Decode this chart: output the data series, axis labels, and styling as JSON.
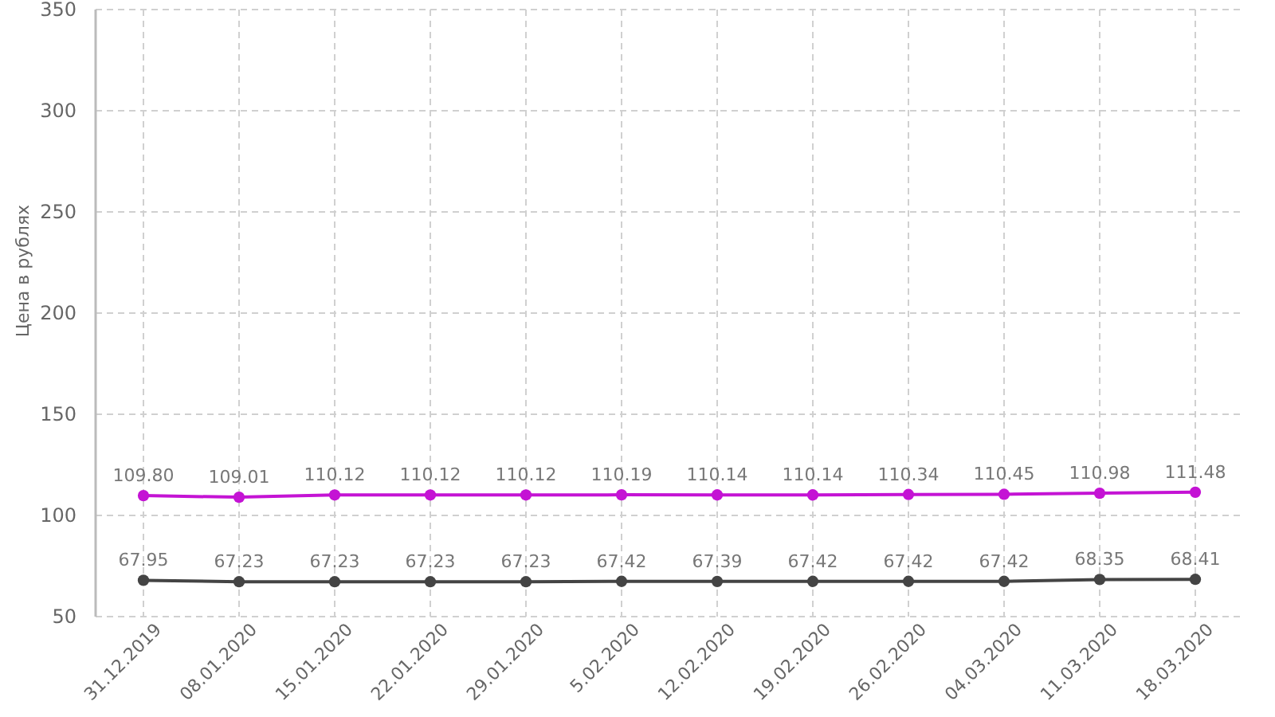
{
  "chart_data": {
    "type": "line",
    "ylabel": "Цена в рублях",
    "categories": [
      "31.12.2019",
      "08.01.2020",
      "15.01.2020",
      "22.01.2020",
      "29.01.2020",
      "5.02.2020",
      "12.02.2020",
      "19.02.2020",
      "26.02.2020",
      "04.03.2020",
      "11.03.2020",
      "18.03.2020"
    ],
    "series": [
      {
        "color": "#c413d4",
        "values": [
          109.8,
          109.01,
          110.12,
          110.12,
          110.12,
          110.19,
          110.14,
          110.14,
          110.34,
          110.45,
          110.98,
          111.48
        ],
        "value_labels": [
          "109.80",
          "109.01",
          "110.12",
          "110.12",
          "110.12",
          "110.19",
          "110.14",
          "110.14",
          "110.34",
          "110.45",
          "110.98",
          "111.48"
        ]
      },
      {
        "color": "#444444",
        "values": [
          67.95,
          67.23,
          67.23,
          67.23,
          67.23,
          67.42,
          67.39,
          67.42,
          67.42,
          67.42,
          68.35,
          68.41
        ],
        "value_labels": [
          "67.95",
          "67.23",
          "67.23",
          "67.23",
          "67.23",
          "67.42",
          "67.39",
          "67.42",
          "67.42",
          "67.42",
          "68.35",
          "68.41"
        ]
      }
    ],
    "ylim": [
      50,
      350
    ],
    "yticks": [
      50,
      100,
      150,
      200,
      250,
      300,
      350
    ],
    "grid": true,
    "marker": "circle",
    "line_style": "solid"
  }
}
